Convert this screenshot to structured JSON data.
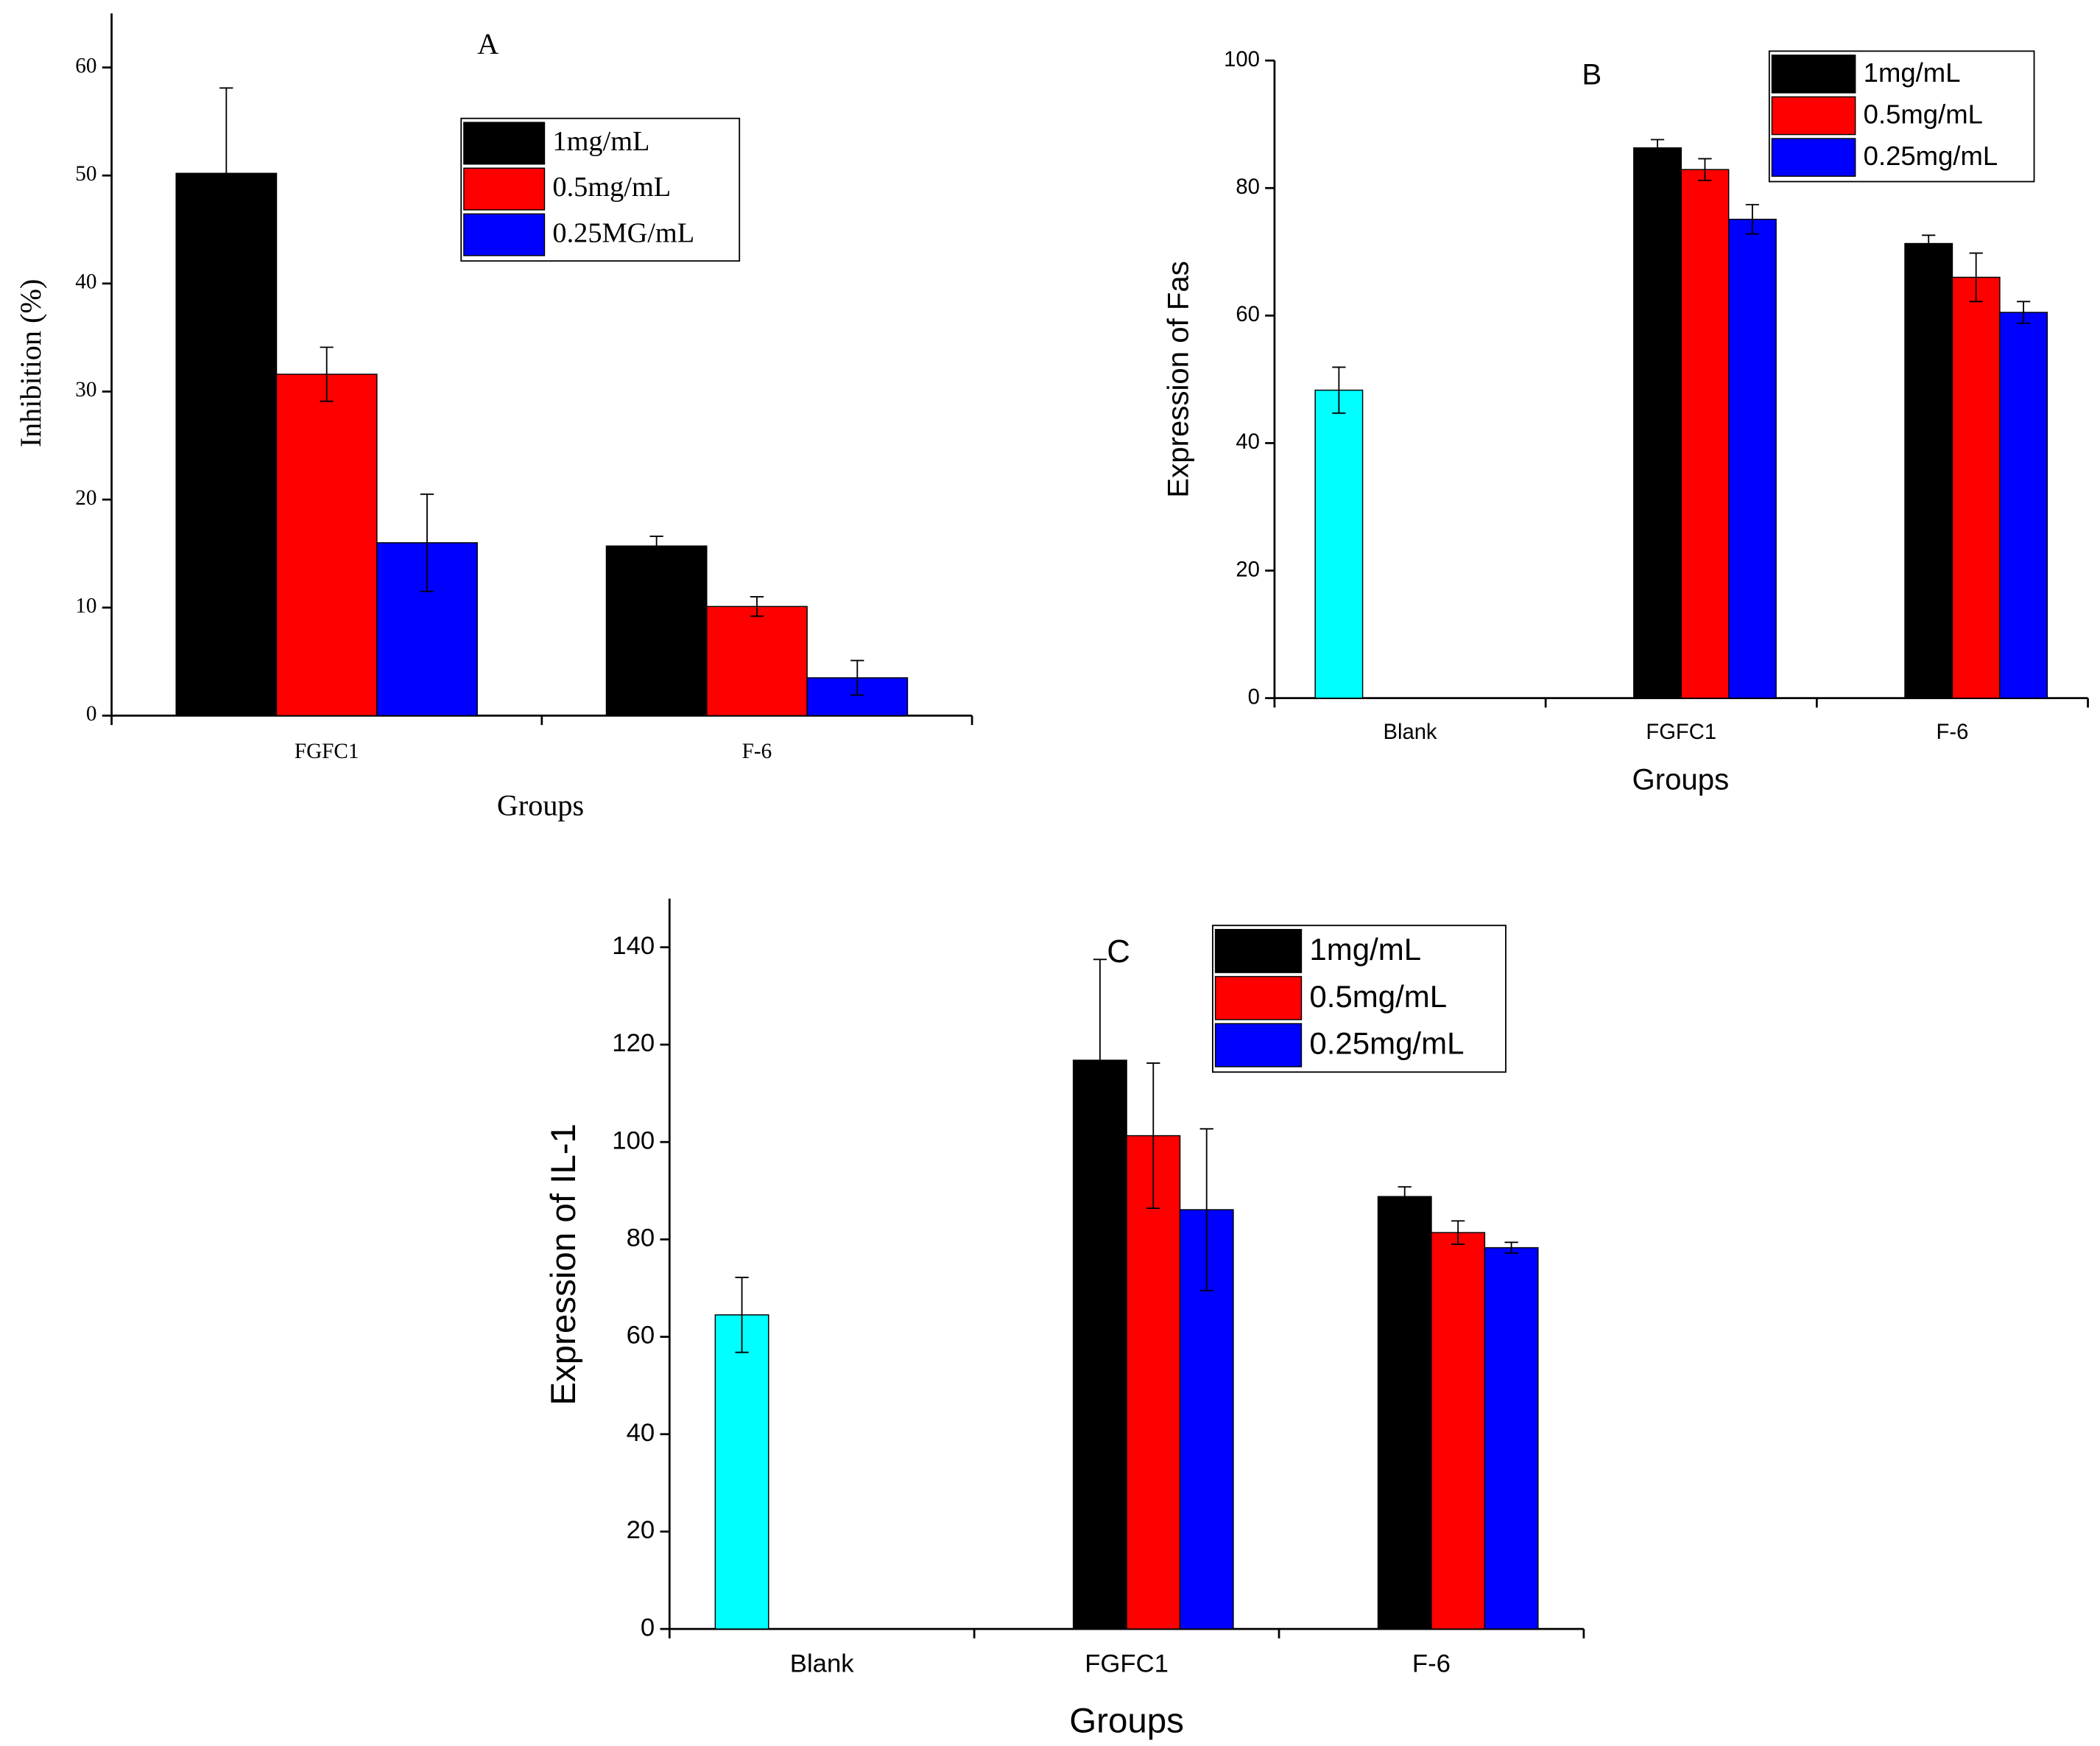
{
  "chart_data": [
    {
      "type": "bar",
      "title": "A",
      "xlabel": "Groups",
      "ylabel": "Inhibition (%)",
      "categories": [
        "FGFC1",
        "F-6"
      ],
      "series": [
        {
          "name": "1mg/mL",
          "color": "#000000",
          "values": [
            50.2,
            15.7
          ],
          "errors": [
            7.9,
            0.9
          ]
        },
        {
          "name": "0.5mg/mL",
          "color": "#ff0000",
          "values": [
            31.6,
            10.1
          ],
          "errors": [
            2.5,
            0.9
          ]
        },
        {
          "name": "0.25MG/mL",
          "color": "#0000ff",
          "values": [
            16.0,
            3.5
          ],
          "errors": [
            4.5,
            1.6
          ]
        }
      ],
      "ylim": [
        0,
        65
      ],
      "yticks": [
        0,
        10,
        20,
        30,
        40,
        50,
        60
      ],
      "legend": "upper center"
    },
    {
      "type": "bar",
      "title": "B",
      "xlabel": "Groups",
      "ylabel": "Expression of Fas",
      "categories": [
        "Blank",
        "FGFC1",
        "F-6"
      ],
      "series": [
        {
          "color": "#00ffff",
          "values": [
            48.3,
            null,
            null
          ],
          "errors": [
            3.6,
            null,
            null
          ]
        },
        {
          "name": "1mg/mL",
          "color": "#000000",
          "values": [
            null,
            86.3,
            71.3
          ],
          "errors": [
            null,
            1.3,
            1.3
          ]
        },
        {
          "name": "0.5mg/mL",
          "color": "#ff0000",
          "values": [
            null,
            82.9,
            66.0
          ],
          "errors": [
            null,
            1.7,
            3.8
          ]
        },
        {
          "name": "0.25mg/mL",
          "color": "#0000ff",
          "values": [
            null,
            75.1,
            60.5
          ],
          "errors": [
            null,
            2.3,
            1.7
          ]
        }
      ],
      "ylim": [
        0,
        100
      ],
      "yticks": [
        0,
        20,
        40,
        60,
        80,
        100
      ],
      "legend": "upper right"
    },
    {
      "type": "bar",
      "title": "C",
      "xlabel": "Groups",
      "ylabel": "Expression of IL-1",
      "categories": [
        "Blank",
        "FGFC1",
        "F-6"
      ],
      "series": [
        {
          "color": "#00ffff",
          "values": [
            64.5,
            null,
            null
          ],
          "errors": [
            7.7,
            null,
            null
          ]
        },
        {
          "name": "1mg/mL",
          "color": "#000000",
          "values": [
            null,
            116.8,
            88.8
          ],
          "errors": [
            null,
            20.7,
            2.0
          ]
        },
        {
          "name": "0.5mg/mL",
          "color": "#ff0000",
          "values": [
            null,
            101.3,
            81.4
          ],
          "errors": [
            null,
            14.9,
            2.4
          ]
        },
        {
          "name": "0.25mg/mL",
          "color": "#0000ff",
          "values": [
            null,
            86.1,
            78.3
          ],
          "errors": [
            null,
            16.6,
            1.1
          ]
        }
      ],
      "ylim": [
        0,
        150
      ],
      "yticks": [
        0,
        20,
        40,
        60,
        80,
        100,
        120,
        140
      ],
      "legend": "upper right"
    }
  ]
}
